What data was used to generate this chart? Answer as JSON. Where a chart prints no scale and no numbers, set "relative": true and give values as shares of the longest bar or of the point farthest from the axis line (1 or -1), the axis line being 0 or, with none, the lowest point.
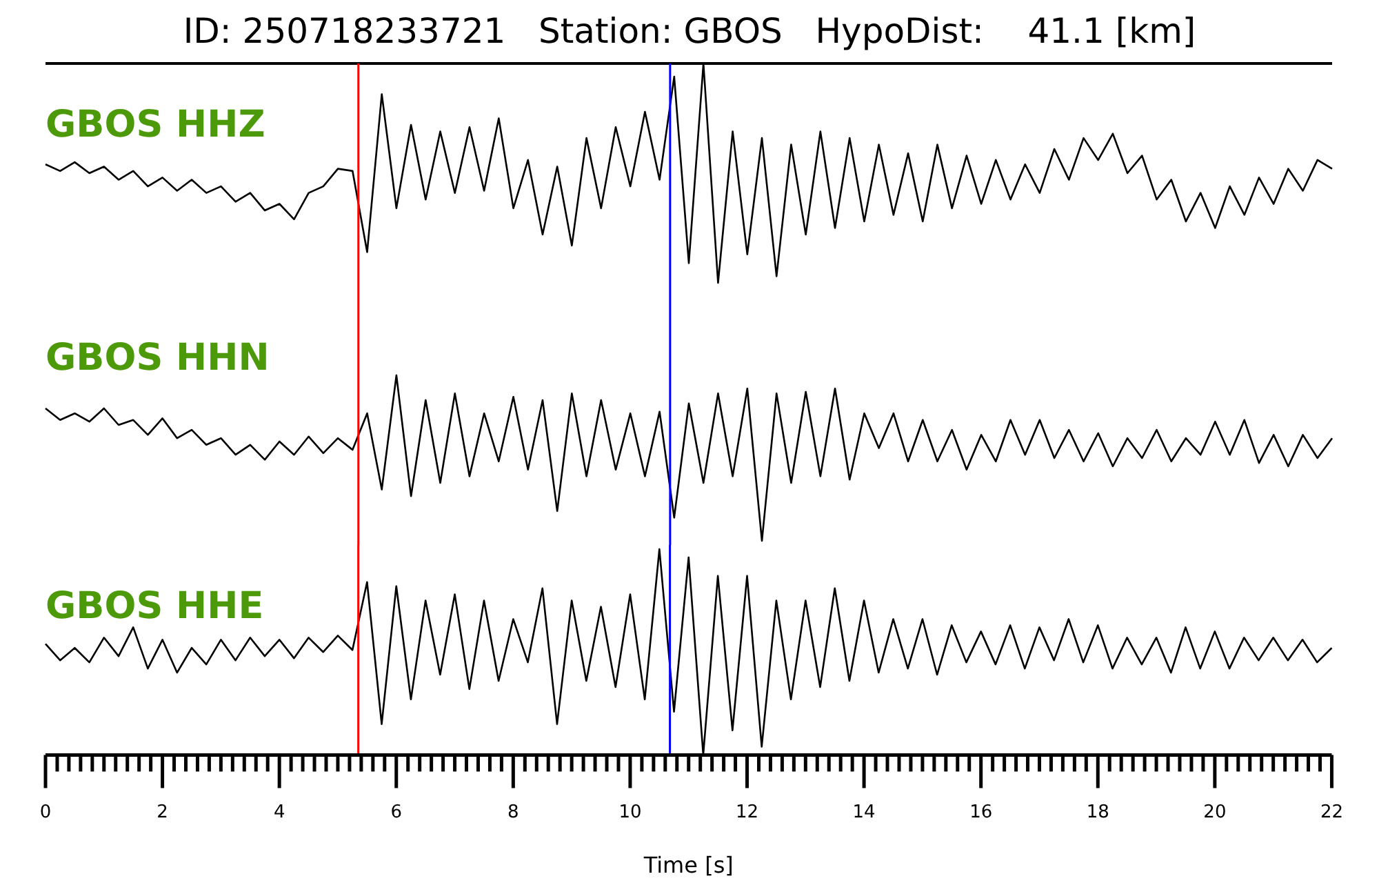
{
  "chart_data": [
    {
      "type": "line",
      "title": "ID: 250718233721   Station: GBOS   HypoDist:    41.1 [km]",
      "relative": true,
      "tick_labels": false,
      "xlim": [
        0,
        22
      ],
      "x": [
        0,
        0.25,
        0.5,
        0.75,
        1,
        1.25,
        1.5,
        1.75,
        2,
        2.25,
        2.5,
        2.75,
        3,
        3.25,
        3.5,
        3.75,
        4,
        4.25,
        4.5,
        4.75,
        5,
        5.25,
        5.5,
        5.75,
        6,
        6.25,
        6.5,
        6.75,
        7,
        7.25,
        7.5,
        7.75,
        8,
        8.25,
        8.5,
        8.75,
        9,
        9.25,
        9.5,
        9.75,
        10,
        10.25,
        10.5,
        10.75,
        11,
        11.25,
        11.5,
        11.75,
        12,
        12.25,
        12.5,
        12.75,
        13,
        13.25,
        13.5,
        13.75,
        14,
        14.25,
        14.5,
        14.75,
        15,
        15.25,
        15.5,
        15.75,
        16,
        16.25,
        16.5,
        16.75,
        17,
        17.25,
        17.5,
        17.75,
        18,
        18.25,
        18.5,
        18.75,
        19,
        19.25,
        19.5,
        19.75,
        20,
        20.25,
        20.5,
        20.75,
        21,
        21.25,
        21.5,
        21.75,
        22
      ],
      "series": [
        {
          "name": "GBOS HHZ",
          "color": "#000000",
          "values": [
            0.54,
            0.51,
            0.55,
            0.5,
            0.53,
            0.47,
            0.51,
            0.44,
            0.48,
            0.42,
            0.47,
            0.41,
            0.44,
            0.37,
            0.41,
            0.33,
            0.36,
            0.29,
            0.41,
            0.44,
            0.52,
            0.51,
            0.14,
            0.86,
            0.34,
            0.72,
            0.38,
            0.69,
            0.41,
            0.71,
            0.42,
            0.75,
            0.34,
            0.56,
            0.22,
            0.53,
            0.17,
            0.66,
            0.34,
            0.71,
            0.44,
            0.78,
            0.47,
            0.94,
            0.09,
            1,
            0,
            0.69,
            0.13,
            0.66,
            0.03,
            0.63,
            0.22,
            0.69,
            0.25,
            0.66,
            0.28,
            0.63,
            0.31,
            0.59,
            0.28,
            0.63,
            0.34,
            0.58,
            0.36,
            0.56,
            0.38,
            0.54,
            0.41,
            0.61,
            0.47,
            0.66,
            0.56,
            0.68,
            0.5,
            0.58,
            0.38,
            0.47,
            0.28,
            0.41,
            0.25,
            0.44,
            0.31,
            0.48,
            0.36,
            0.52,
            0.42,
            0.56,
            0.52
          ]
        }
      ],
      "ref_lines": [
        {
          "axis": "x",
          "value": 5.35,
          "color": "#ff0000"
        },
        {
          "axis": "x",
          "value": 10.68,
          "color": "#0000ff"
        }
      ]
    },
    {
      "type": "line",
      "relative": true,
      "tick_labels": false,
      "xlim": [
        0,
        22
      ],
      "x": [
        0,
        0.25,
        0.5,
        0.75,
        1,
        1.25,
        1.5,
        1.75,
        2,
        2.25,
        2.5,
        2.75,
        3,
        3.25,
        3.5,
        3.75,
        4,
        4.25,
        4.5,
        4.75,
        5,
        5.25,
        5.5,
        5.75,
        6,
        6.25,
        6.5,
        6.75,
        7,
        7.25,
        7.5,
        7.75,
        8,
        8.25,
        8.5,
        8.75,
        9,
        9.25,
        9.5,
        9.75,
        10,
        10.25,
        10.5,
        10.75,
        11,
        11.25,
        11.5,
        11.75,
        12,
        12.25,
        12.5,
        12.75,
        13,
        13.25,
        13.5,
        13.75,
        14,
        14.25,
        14.5,
        14.75,
        15,
        15.25,
        15.5,
        15.75,
        16,
        16.25,
        16.5,
        16.75,
        17,
        17.25,
        17.5,
        17.75,
        18,
        18.25,
        18.5,
        18.75,
        19,
        19.25,
        19.5,
        19.75,
        20,
        20.25,
        20.5,
        20.75,
        21,
        21.25,
        21.5,
        21.75,
        22
      ],
      "series": [
        {
          "name": "GBOS HHN",
          "color": "#000000",
          "values": [
            0.8,
            0.73,
            0.77,
            0.72,
            0.8,
            0.7,
            0.73,
            0.64,
            0.74,
            0.62,
            0.67,
            0.58,
            0.62,
            0.52,
            0.58,
            0.49,
            0.6,
            0.52,
            0.63,
            0.53,
            0.62,
            0.55,
            0.77,
            0.31,
            1,
            0.27,
            0.85,
            0.35,
            0.89,
            0.39,
            0.77,
            0.48,
            0.87,
            0.43,
            0.85,
            0.18,
            0.89,
            0.39,
            0.85,
            0.43,
            0.77,
            0.39,
            0.78,
            0.14,
            0.83,
            0.35,
            0.89,
            0.39,
            0.92,
            0,
            0.89,
            0.35,
            0.9,
            0.39,
            0.92,
            0.37,
            0.77,
            0.56,
            0.77,
            0.48,
            0.73,
            0.48,
            0.67,
            0.43,
            0.64,
            0.48,
            0.73,
            0.52,
            0.73,
            0.5,
            0.67,
            0.48,
            0.65,
            0.45,
            0.62,
            0.5,
            0.67,
            0.48,
            0.62,
            0.52,
            0.72,
            0.52,
            0.73,
            0.47,
            0.64,
            0.45,
            0.64,
            0.5,
            0.62
          ]
        }
      ],
      "ref_lines": [
        {
          "axis": "x",
          "value": 5.35,
          "color": "#ff0000"
        },
        {
          "axis": "x",
          "value": 10.68,
          "color": "#0000ff"
        }
      ]
    },
    {
      "type": "line",
      "relative": true,
      "tick_labels": "x",
      "xlabel": "Time [s]",
      "xlim": [
        0,
        22
      ],
      "xticks": [
        0,
        {
          "value": 0.2,
          "label": null
        },
        {
          "value": 0.4,
          "label": null
        },
        {
          "value": 0.6,
          "label": null
        },
        {
          "value": 0.8,
          "label": null
        },
        {
          "value": 1,
          "label": null
        },
        {
          "value": 1.2,
          "label": null
        },
        {
          "value": 1.4,
          "label": null
        },
        {
          "value": 1.6,
          "label": null
        },
        {
          "value": 1.8,
          "label": null
        },
        2,
        {
          "value": 2.2,
          "label": null
        },
        {
          "value": 2.4,
          "label": null
        },
        {
          "value": 2.6,
          "label": null
        },
        {
          "value": 2.8,
          "label": null
        },
        {
          "value": 3,
          "label": null
        },
        {
          "value": 3.2,
          "label": null
        },
        {
          "value": 3.4,
          "label": null
        },
        {
          "value": 3.6,
          "label": null
        },
        {
          "value": 3.8,
          "label": null
        },
        4,
        {
          "value": 4.2,
          "label": null
        },
        {
          "value": 4.4,
          "label": null
        },
        {
          "value": 4.6,
          "label": null
        },
        {
          "value": 4.8,
          "label": null
        },
        {
          "value": 5,
          "label": null
        },
        {
          "value": 5.2,
          "label": null
        },
        {
          "value": 5.4,
          "label": null
        },
        {
          "value": 5.6,
          "label": null
        },
        {
          "value": 5.8,
          "label": null
        },
        6,
        {
          "value": 6.2,
          "label": null
        },
        {
          "value": 6.4,
          "label": null
        },
        {
          "value": 6.6,
          "label": null
        },
        {
          "value": 6.8,
          "label": null
        },
        {
          "value": 7,
          "label": null
        },
        {
          "value": 7.2,
          "label": null
        },
        {
          "value": 7.4,
          "label": null
        },
        {
          "value": 7.6,
          "label": null
        },
        {
          "value": 7.8,
          "label": null
        },
        8,
        {
          "value": 8.2,
          "label": null
        },
        {
          "value": 8.4,
          "label": null
        },
        {
          "value": 8.6,
          "label": null
        },
        {
          "value": 8.8,
          "label": null
        },
        {
          "value": 9,
          "label": null
        },
        {
          "value": 9.2,
          "label": null
        },
        {
          "value": 9.4,
          "label": null
        },
        {
          "value": 9.6,
          "label": null
        },
        {
          "value": 9.8,
          "label": null
        },
        10,
        {
          "value": 10.2,
          "label": null
        },
        {
          "value": 10.4,
          "label": null
        },
        {
          "value": 10.6,
          "label": null
        },
        {
          "value": 10.8,
          "label": null
        },
        {
          "value": 11,
          "label": null
        },
        {
          "value": 11.2,
          "label": null
        },
        {
          "value": 11.4,
          "label": null
        },
        {
          "value": 11.6,
          "label": null
        },
        {
          "value": 11.8,
          "label": null
        },
        12,
        {
          "value": 12.2,
          "label": null
        },
        {
          "value": 12.4,
          "label": null
        },
        {
          "value": 12.6,
          "label": null
        },
        {
          "value": 12.8,
          "label": null
        },
        {
          "value": 13,
          "label": null
        },
        {
          "value": 13.2,
          "label": null
        },
        {
          "value": 13.4,
          "label": null
        },
        {
          "value": 13.6,
          "label": null
        },
        {
          "value": 13.8,
          "label": null
        },
        14,
        {
          "value": 14.2,
          "label": null
        },
        {
          "value": 14.4,
          "label": null
        },
        {
          "value": 14.6,
          "label": null
        },
        {
          "value": 14.8,
          "label": null
        },
        {
          "value": 15,
          "label": null
        },
        {
          "value": 15.2,
          "label": null
        },
        {
          "value": 15.4,
          "label": null
        },
        {
          "value": 15.6,
          "label": null
        },
        {
          "value": 15.8,
          "label": null
        },
        16,
        {
          "value": 16.2,
          "label": null
        },
        {
          "value": 16.4,
          "label": null
        },
        {
          "value": 16.6,
          "label": null
        },
        {
          "value": 16.8,
          "label": null
        },
        {
          "value": 17,
          "label": null
        },
        {
          "value": 17.2,
          "label": null
        },
        {
          "value": 17.4,
          "label": null
        },
        {
          "value": 17.6,
          "label": null
        },
        {
          "value": 17.8,
          "label": null
        },
        18,
        {
          "value": 18.2,
          "label": null
        },
        {
          "value": 18.4,
          "label": null
        },
        {
          "value": 18.6,
          "label": null
        },
        {
          "value": 18.8,
          "label": null
        },
        {
          "value": 19,
          "label": null
        },
        {
          "value": 19.2,
          "label": null
        },
        {
          "value": 19.4,
          "label": null
        },
        {
          "value": 19.6,
          "label": null
        },
        {
          "value": 19.8,
          "label": null
        },
        20,
        {
          "value": 20.2,
          "label": null
        },
        {
          "value": 20.4,
          "label": null
        },
        {
          "value": 20.6,
          "label": null
        },
        {
          "value": 20.8,
          "label": null
        },
        {
          "value": 21,
          "label": null
        },
        {
          "value": 21.2,
          "label": null
        },
        {
          "value": 21.4,
          "label": null
        },
        {
          "value": 21.6,
          "label": null
        },
        {
          "value": 21.8,
          "label": null
        },
        22
      ],
      "x": [
        0,
        0.25,
        0.5,
        0.75,
        1,
        1.25,
        1.5,
        1.75,
        2,
        2.25,
        2.5,
        2.75,
        3,
        3.25,
        3.5,
        3.75,
        4,
        4.25,
        4.5,
        4.75,
        5,
        5.25,
        5.5,
        5.75,
        6,
        6.25,
        6.5,
        6.75,
        7,
        7.25,
        7.5,
        7.75,
        8,
        8.25,
        8.5,
        8.75,
        9,
        9.25,
        9.5,
        9.75,
        10,
        10.25,
        10.5,
        10.75,
        11,
        11.25,
        11.5,
        11.75,
        12,
        12.25,
        12.5,
        12.75,
        13,
        13.25,
        13.5,
        13.75,
        14,
        14.25,
        14.5,
        14.75,
        15,
        15.25,
        15.5,
        15.75,
        16,
        16.25,
        16.5,
        16.75,
        17,
        17.25,
        17.5,
        17.75,
        18,
        18.25,
        18.5,
        18.75,
        19,
        19.25,
        19.5,
        19.75,
        20,
        20.25,
        20.5,
        20.75,
        21,
        21.25,
        21.5,
        21.75,
        22
      ],
      "series": [
        {
          "name": "GBOS HHE",
          "color": "#000000",
          "values": [
            0.54,
            0.46,
            0.52,
            0.45,
            0.57,
            0.48,
            0.62,
            0.42,
            0.56,
            0.4,
            0.52,
            0.44,
            0.56,
            0.46,
            0.57,
            0.48,
            0.56,
            0.47,
            0.57,
            0.5,
            0.58,
            0.51,
            0.84,
            0.15,
            0.82,
            0.27,
            0.75,
            0.39,
            0.78,
            0.32,
            0.75,
            0.36,
            0.66,
            0.45,
            0.81,
            0.15,
            0.75,
            0.36,
            0.72,
            0.33,
            0.78,
            0.27,
            1,
            0.21,
            0.96,
            0,
            0.87,
            0.12,
            0.87,
            0.04,
            0.75,
            0.27,
            0.75,
            0.33,
            0.81,
            0.36,
            0.75,
            0.4,
            0.66,
            0.42,
            0.66,
            0.39,
            0.63,
            0.45,
            0.6,
            0.44,
            0.63,
            0.42,
            0.62,
            0.46,
            0.66,
            0.45,
            0.63,
            0.42,
            0.57,
            0.44,
            0.57,
            0.4,
            0.62,
            0.42,
            0.6,
            0.42,
            0.57,
            0.46,
            0.57,
            0.46,
            0.56,
            0.45,
            0.52
          ]
        }
      ],
      "ref_lines": [
        {
          "axis": "x",
          "value": 5.35,
          "color": "#ff0000"
        },
        {
          "axis": "x",
          "value": 10.68,
          "color": "#0000ff"
        }
      ]
    }
  ]
}
